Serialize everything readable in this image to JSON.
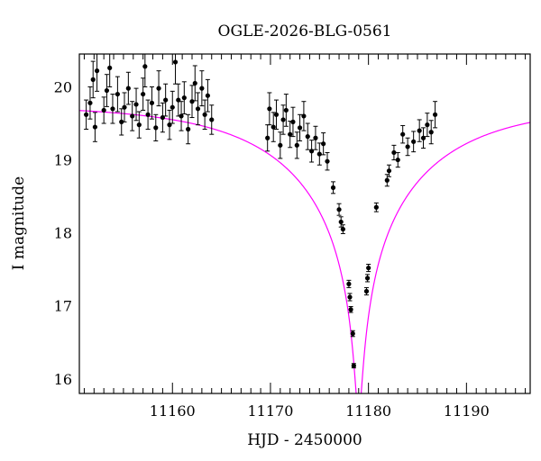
{
  "chart_data": {
    "type": "scatter",
    "title": "OGLE-2026-BLG-0561",
    "xlabel": "HJD - 2450000",
    "ylabel": "I magnitude",
    "xlim": [
      11150.5,
      11196.5
    ],
    "ylim": [
      20.45,
      15.8
    ],
    "y_inverted": true,
    "x_ticks": [
      11160,
      11170,
      11180,
      11190
    ],
    "x_tick_labels": [
      "11160",
      "11170",
      "11180",
      "11190"
    ],
    "y_ticks": [
      16,
      17,
      18,
      19,
      20
    ],
    "y_tick_labels": [
      "16",
      "17",
      "18",
      "19",
      "20"
    ],
    "grid": false,
    "colors": {
      "model": "#ff00ff",
      "points": "#000000"
    },
    "model": {
      "name": "",
      "baseline": 19.75,
      "t0": 11179.0,
      "tE": 15.0,
      "u0": 0.02
    },
    "series": [
      {
        "points": [
          {
            "x": 11151.2,
            "y": 19.62,
            "e": 0.2
          },
          {
            "x": 11151.6,
            "y": 19.78,
            "e": 0.22
          },
          {
            "x": 11151.9,
            "y": 20.1,
            "e": 0.25
          },
          {
            "x": 11152.1,
            "y": 19.45,
            "e": 0.2
          },
          {
            "x": 11152.3,
            "y": 20.22,
            "e": 0.28
          },
          {
            "x": 11153.0,
            "y": 19.68,
            "e": 0.18
          },
          {
            "x": 11153.3,
            "y": 19.95,
            "e": 0.22
          },
          {
            "x": 11153.6,
            "y": 20.26,
            "e": 0.26
          },
          {
            "x": 11153.9,
            "y": 19.7,
            "e": 0.2
          },
          {
            "x": 11154.4,
            "y": 19.9,
            "e": 0.24
          },
          {
            "x": 11154.8,
            "y": 19.52,
            "e": 0.18
          },
          {
            "x": 11155.1,
            "y": 19.72,
            "e": 0.2
          },
          {
            "x": 11155.5,
            "y": 19.98,
            "e": 0.22
          },
          {
            "x": 11155.9,
            "y": 19.6,
            "e": 0.2
          },
          {
            "x": 11156.3,
            "y": 19.76,
            "e": 0.22
          },
          {
            "x": 11156.6,
            "y": 19.48,
            "e": 0.18
          },
          {
            "x": 11157.0,
            "y": 19.9,
            "e": 0.22
          },
          {
            "x": 11157.2,
            "y": 20.28,
            "e": 0.28
          },
          {
            "x": 11157.5,
            "y": 19.62,
            "e": 0.2
          },
          {
            "x": 11157.9,
            "y": 19.78,
            "e": 0.22
          },
          {
            "x": 11158.3,
            "y": 19.44,
            "e": 0.18
          },
          {
            "x": 11158.6,
            "y": 19.98,
            "e": 0.24
          },
          {
            "x": 11159.0,
            "y": 19.58,
            "e": 0.2
          },
          {
            "x": 11159.3,
            "y": 19.82,
            "e": 0.22
          },
          {
            "x": 11159.7,
            "y": 19.48,
            "e": 0.2
          },
          {
            "x": 11160.0,
            "y": 19.72,
            "e": 0.22
          },
          {
            "x": 11160.3,
            "y": 20.34,
            "e": 0.3
          },
          {
            "x": 11160.6,
            "y": 19.82,
            "e": 0.22
          },
          {
            "x": 11160.9,
            "y": 19.6,
            "e": 0.2
          },
          {
            "x": 11161.2,
            "y": 19.85,
            "e": 0.22
          },
          {
            "x": 11161.6,
            "y": 19.42,
            "e": 0.2
          },
          {
            "x": 11162.0,
            "y": 19.8,
            "e": 0.22
          },
          {
            "x": 11162.3,
            "y": 20.05,
            "e": 0.24
          },
          {
            "x": 11162.6,
            "y": 19.7,
            "e": 0.22
          },
          {
            "x": 11163.0,
            "y": 19.98,
            "e": 0.24
          },
          {
            "x": 11163.3,
            "y": 19.62,
            "e": 0.2
          },
          {
            "x": 11163.6,
            "y": 19.88,
            "e": 0.22
          },
          {
            "x": 11164.0,
            "y": 19.55,
            "e": 0.2
          },
          {
            "x": 11169.7,
            "y": 19.3,
            "e": 0.18
          },
          {
            "x": 11169.9,
            "y": 19.7,
            "e": 0.22
          },
          {
            "x": 11170.3,
            "y": 19.45,
            "e": 0.2
          },
          {
            "x": 11170.6,
            "y": 19.62,
            "e": 0.2
          },
          {
            "x": 11171.0,
            "y": 19.2,
            "e": 0.18
          },
          {
            "x": 11171.3,
            "y": 19.55,
            "e": 0.2
          },
          {
            "x": 11171.6,
            "y": 19.68,
            "e": 0.22
          },
          {
            "x": 11172.0,
            "y": 19.35,
            "e": 0.18
          },
          {
            "x": 11172.3,
            "y": 19.52,
            "e": 0.2
          },
          {
            "x": 11172.7,
            "y": 19.2,
            "e": 0.18
          },
          {
            "x": 11173.0,
            "y": 19.44,
            "e": 0.18
          },
          {
            "x": 11173.4,
            "y": 19.6,
            "e": 0.2
          },
          {
            "x": 11173.8,
            "y": 19.32,
            "e": 0.18
          },
          {
            "x": 11174.2,
            "y": 19.12,
            "e": 0.15
          },
          {
            "x": 11174.6,
            "y": 19.3,
            "e": 0.16
          },
          {
            "x": 11175.0,
            "y": 19.08,
            "e": 0.15
          },
          {
            "x": 11175.4,
            "y": 19.22,
            "e": 0.15
          },
          {
            "x": 11175.8,
            "y": 18.98,
            "e": 0.12
          },
          {
            "x": 11176.4,
            "y": 18.62,
            "e": 0.08
          },
          {
            "x": 11177.0,
            "y": 18.32,
            "e": 0.08
          },
          {
            "x": 11177.2,
            "y": 18.15,
            "e": 0.07
          },
          {
            "x": 11177.4,
            "y": 18.05,
            "e": 0.06
          },
          {
            "x": 11178.0,
            "y": 17.3,
            "e": 0.05
          },
          {
            "x": 11178.1,
            "y": 17.12,
            "e": 0.05
          },
          {
            "x": 11178.2,
            "y": 16.95,
            "e": 0.04
          },
          {
            "x": 11178.4,
            "y": 16.62,
            "e": 0.04
          },
          {
            "x": 11178.5,
            "y": 16.18,
            "e": 0.03
          },
          {
            "x": 11179.8,
            "y": 17.2,
            "e": 0.05
          },
          {
            "x": 11179.9,
            "y": 17.38,
            "e": 0.05
          },
          {
            "x": 11180.0,
            "y": 17.52,
            "e": 0.05
          },
          {
            "x": 11180.8,
            "y": 18.35,
            "e": 0.06
          },
          {
            "x": 11181.9,
            "y": 18.72,
            "e": 0.08
          },
          {
            "x": 11182.1,
            "y": 18.85,
            "e": 0.08
          },
          {
            "x": 11182.6,
            "y": 19.1,
            "e": 0.1
          },
          {
            "x": 11183.0,
            "y": 19.0,
            "e": 0.1
          },
          {
            "x": 11183.5,
            "y": 19.35,
            "e": 0.12
          },
          {
            "x": 11184.0,
            "y": 19.18,
            "e": 0.12
          },
          {
            "x": 11184.6,
            "y": 19.25,
            "e": 0.14
          },
          {
            "x": 11185.2,
            "y": 19.4,
            "e": 0.15
          },
          {
            "x": 11185.6,
            "y": 19.3,
            "e": 0.14
          },
          {
            "x": 11186.0,
            "y": 19.48,
            "e": 0.16
          },
          {
            "x": 11186.4,
            "y": 19.38,
            "e": 0.16
          },
          {
            "x": 11186.8,
            "y": 19.62,
            "e": 0.18
          }
        ]
      }
    ]
  }
}
